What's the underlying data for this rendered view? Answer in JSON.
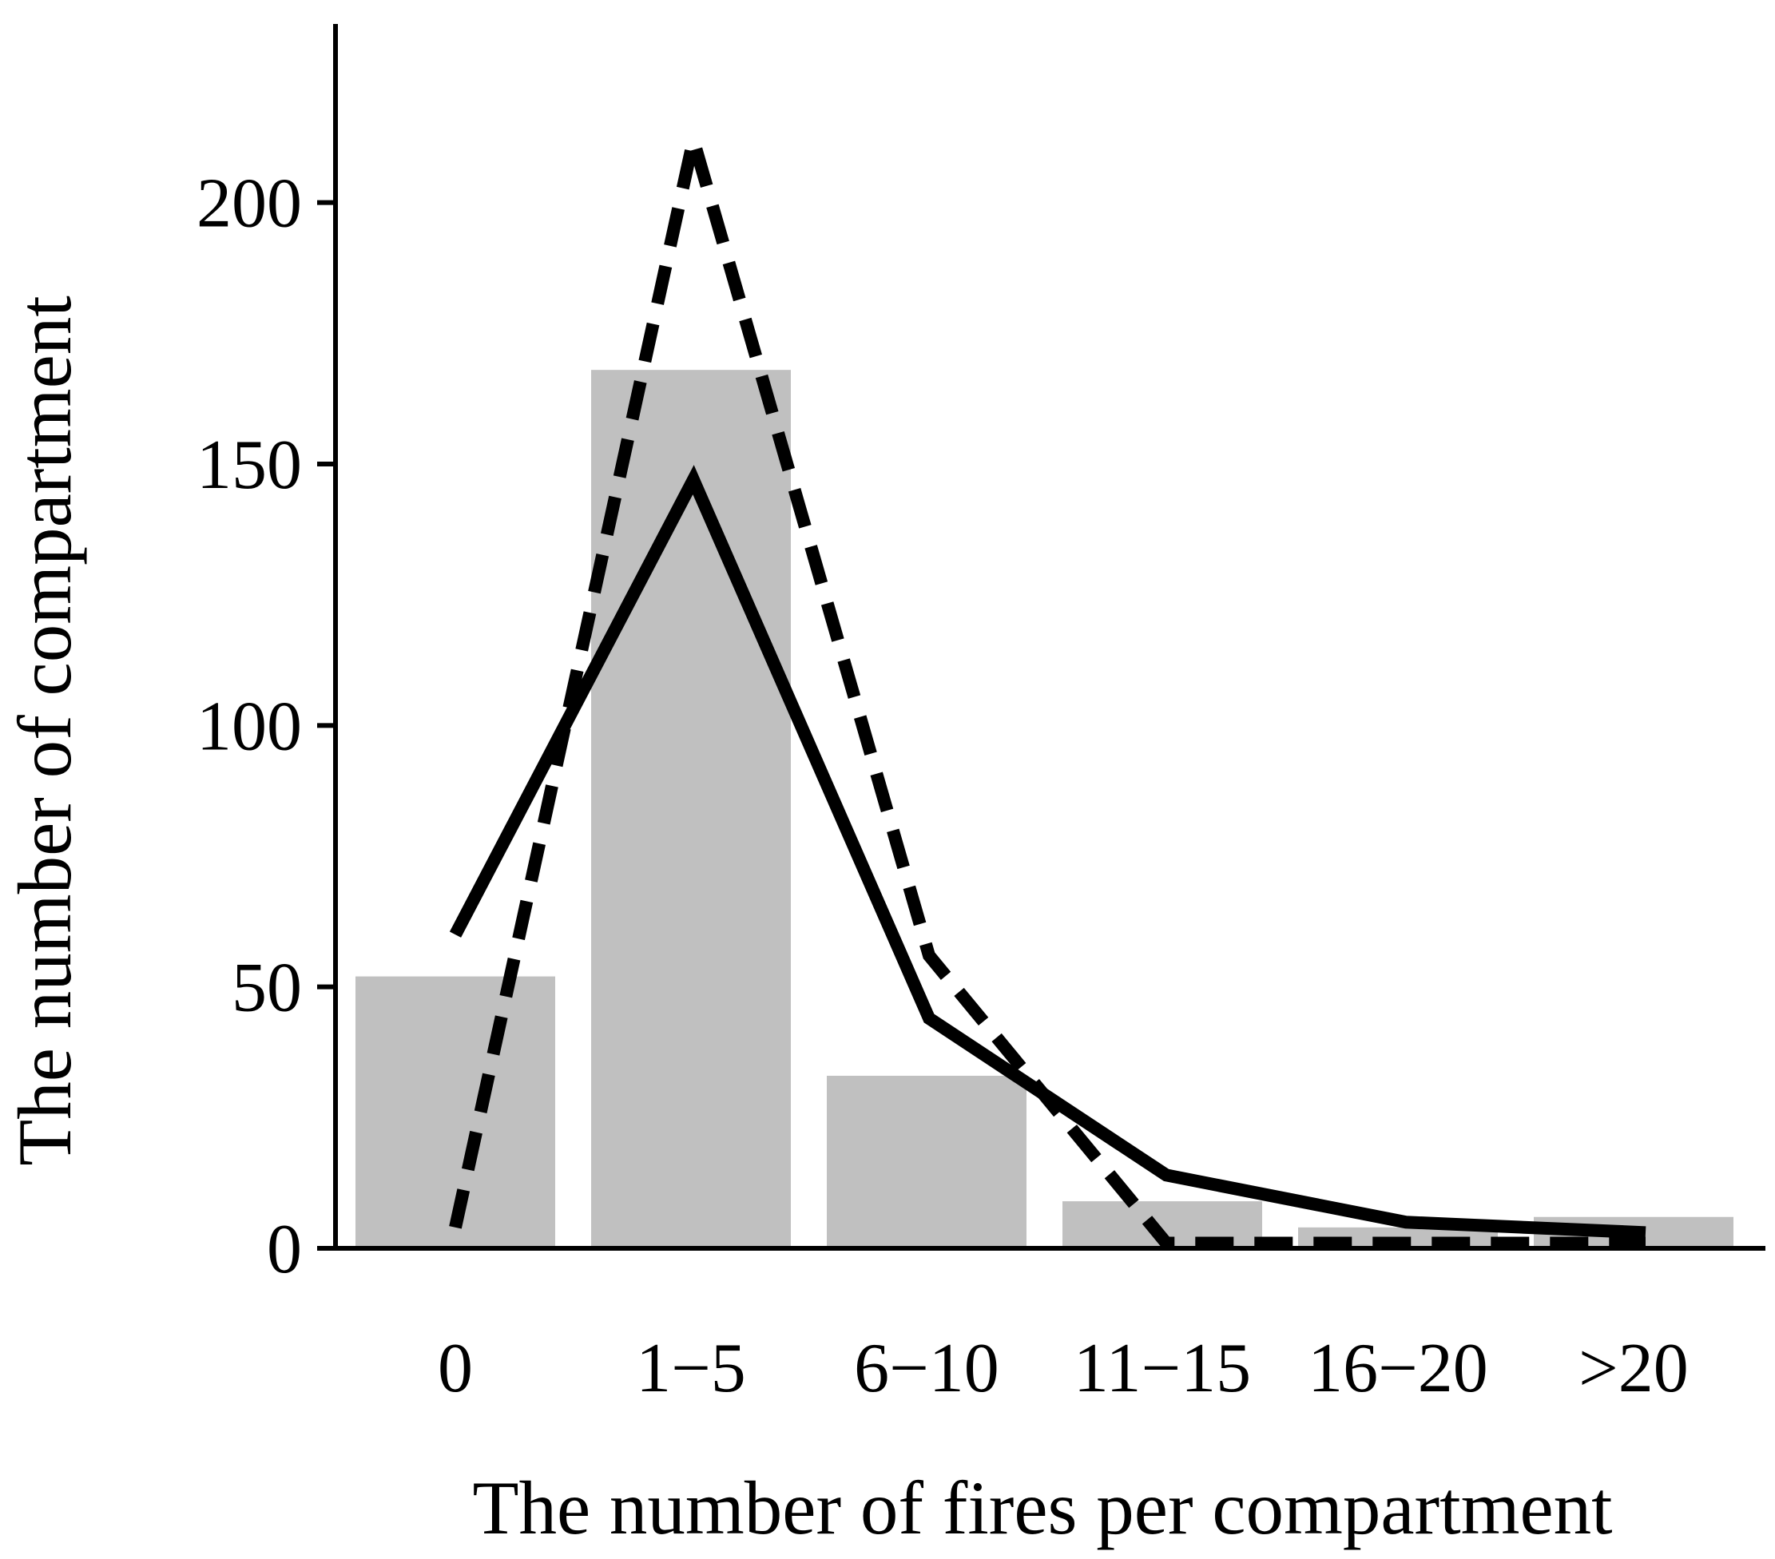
{
  "chart_data": {
    "type": "bar",
    "title": "",
    "xlabel": "The number of fires per compartment",
    "ylabel": "The number of compartment",
    "categories": [
      "0",
      "1−5",
      "6−10",
      "11−15",
      "16−20",
      ">20"
    ],
    "yticks": [
      "0",
      "50",
      "100",
      "150",
      "200"
    ],
    "ylim": [
      0,
      225
    ],
    "grid": false,
    "legend": "none",
    "bar_color": "#c0c0c0",
    "line_color": "#000000",
    "bars": {
      "values": [
        52,
        168,
        33,
        9,
        4,
        6
      ]
    },
    "series": [
      {
        "style": "solid",
        "values": [
          60,
          147,
          44,
          14,
          5,
          3
        ]
      },
      {
        "style": "dashed",
        "values": [
          4,
          212,
          56,
          1,
          1,
          1
        ]
      }
    ]
  }
}
